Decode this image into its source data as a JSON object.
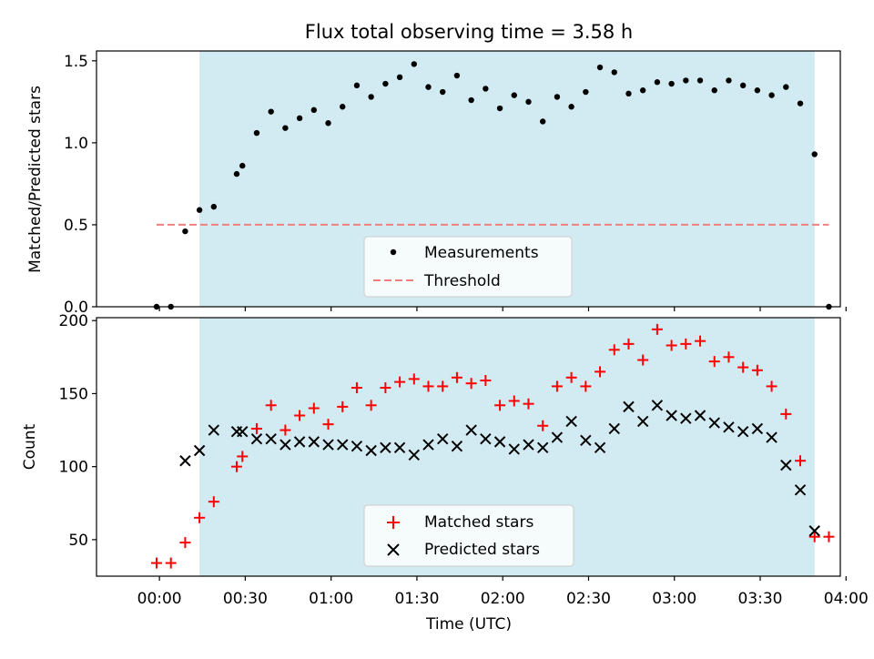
{
  "figure": {
    "title": "Flux total observing time = 3.58 h"
  },
  "chart_data": [
    {
      "type": "scatter",
      "ylabel": "Matched/Predicted stars",
      "ylim": [
        0,
        1.56
      ],
      "yticks": [
        0.0,
        0.5,
        1.0,
        1.5
      ],
      "ytick_labels": [
        "0.0",
        "0.5",
        "1.0",
        "1.5"
      ],
      "xlim_minutes": [
        -22,
        238
      ],
      "shaded_span_minutes": [
        14,
        229
      ],
      "series": [
        {
          "name": "Measurements",
          "marker": "dot",
          "color": "#000000",
          "x_minutes": [
            -1,
            4,
            9,
            14,
            19,
            27,
            29,
            34,
            39,
            44,
            49,
            54,
            59,
            64,
            69,
            74,
            79,
            84,
            89,
            94,
            99,
            104,
            109,
            114,
            119,
            124,
            129,
            134,
            139,
            144,
            149,
            154,
            159,
            164,
            169,
            174,
            179,
            184,
            189,
            194,
            199,
            204,
            209,
            214,
            219,
            224,
            229,
            234
          ],
          "y": [
            0,
            0,
            0.46,
            0.59,
            0.61,
            0.81,
            0.86,
            1.06,
            1.19,
            1.09,
            1.15,
            1.2,
            1.12,
            1.22,
            1.35,
            1.28,
            1.36,
            1.4,
            1.48,
            1.34,
            1.31,
            1.41,
            1.26,
            1.33,
            1.21,
            1.29,
            1.25,
            1.13,
            1.28,
            1.22,
            1.31,
            1.46,
            1.43,
            1.3,
            1.32,
            1.37,
            1.36,
            1.38,
            1.38,
            1.32,
            1.38,
            1.35,
            1.32,
            1.29,
            1.34,
            1.24,
            0.93,
            0
          ]
        },
        {
          "name": "Threshold",
          "style": "dashed",
          "color": "#f08080",
          "x_minutes": [
            -1,
            234
          ],
          "y": [
            0.5,
            0.5
          ]
        }
      ],
      "legend": {
        "position": "lower center",
        "entries": [
          "Measurements",
          "Threshold"
        ]
      }
    },
    {
      "type": "scatter",
      "ylabel": "Count",
      "xlabel": "Time (UTC)",
      "ylim": [
        25,
        202
      ],
      "yticks": [
        50,
        100,
        150,
        200
      ],
      "ytick_labels": [
        "50",
        "100",
        "150",
        "200"
      ],
      "xticks_minutes": [
        0,
        30,
        60,
        90,
        120,
        150,
        180,
        210,
        240
      ],
      "xtick_labels": [
        "00:00",
        "00:30",
        "01:00",
        "01:30",
        "02:00",
        "02:30",
        "03:00",
        "03:30",
        "04:00"
      ],
      "xlim_minutes": [
        -22,
        238
      ],
      "shaded_span_minutes": [
        14,
        229
      ],
      "series": [
        {
          "name": "Matched stars",
          "marker": "plus",
          "color": "#ff0000",
          "x_minutes": [
            -1,
            4,
            9,
            14,
            19,
            27,
            29,
            34,
            39,
            44,
            49,
            54,
            59,
            64,
            69,
            74,
            79,
            84,
            89,
            94,
            99,
            104,
            109,
            114,
            119,
            124,
            129,
            134,
            139,
            144,
            149,
            154,
            159,
            164,
            169,
            174,
            179,
            184,
            189,
            194,
            199,
            204,
            209,
            214,
            219,
            224,
            229,
            234
          ],
          "y": [
            34,
            34,
            48,
            65,
            76,
            100,
            107,
            126,
            142,
            125,
            135,
            140,
            129,
            141,
            154,
            142,
            154,
            158,
            160,
            155,
            155,
            161,
            157,
            159,
            142,
            145,
            143,
            128,
            155,
            161,
            155,
            165,
            180,
            184,
            173,
            194,
            183,
            184,
            186,
            172,
            175,
            168,
            166,
            155,
            136,
            104,
            52,
            52
          ]
        },
        {
          "name": "Predicted stars",
          "marker": "x",
          "color": "#000000",
          "x_minutes": [
            9,
            14,
            19,
            27,
            29,
            34,
            39,
            44,
            49,
            54,
            59,
            64,
            69,
            74,
            79,
            84,
            89,
            94,
            99,
            104,
            109,
            114,
            119,
            124,
            129,
            134,
            139,
            144,
            149,
            154,
            159,
            164,
            169,
            174,
            179,
            184,
            189,
            194,
            199,
            204,
            209,
            214,
            219,
            224,
            229
          ],
          "y": [
            104,
            111,
            125,
            124,
            124,
            119,
            119,
            115,
            117,
            117,
            115,
            115,
            114,
            111,
            113,
            113,
            108,
            115,
            119,
            114,
            125,
            119,
            117,
            112,
            115,
            113,
            120,
            131,
            118,
            113,
            126,
            141,
            131,
            142,
            135,
            133,
            135,
            130,
            127,
            124,
            126,
            120,
            101,
            84,
            56
          ]
        }
      ],
      "legend": {
        "position": "lower center",
        "entries": [
          "Matched stars",
          "Predicted stars"
        ]
      }
    }
  ]
}
